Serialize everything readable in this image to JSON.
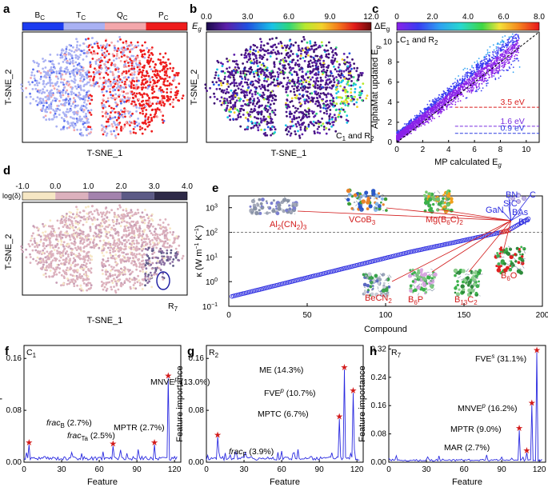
{
  "panels": {
    "a": {
      "label": "a",
      "legend": [
        "B",
        "T",
        "Q",
        "P"
      ],
      "legend_sub": "C",
      "legend_colors": [
        "#1c3cf0",
        "#a9b1f3",
        "#f3a7ab",
        "#ee1c1c"
      ],
      "xlabel": "T-SNE_1",
      "ylabel": "T-SNE_2"
    },
    "b": {
      "label": "b",
      "colorbar_ticks": [
        "0.0",
        "3.0",
        "6.0",
        "9.0",
        "12.0"
      ],
      "colorbar_title": "E",
      "colorbar_title_sub": "g",
      "region_label": "C",
      "region_sub": "1",
      "region_rest": " and R",
      "region_sub2": "2",
      "xlabel": "T-SNE_1",
      "ylabel": "T-SNE_2"
    },
    "c": {
      "label": "c",
      "colorbar_ticks": [
        "0",
        "2.0",
        "4.0",
        "6.0",
        "8.0"
      ],
      "colorbar_title": "ΔE",
      "colorbar_title_sub": "g",
      "region_label": "C",
      "region_sub": "1",
      "region_rest": " and R",
      "region_sub2": "2",
      "xlabel": "MP calculated E",
      "xlabel_sub": "g",
      "ylabel": "AlphaMat updated E",
      "ylabel_sub": "g",
      "x_ticks": [
        "0",
        "2",
        "4",
        "6",
        "8",
        "10"
      ],
      "y_ticks": [
        "0",
        "2",
        "4",
        "6",
        "8",
        "10"
      ],
      "threshold_labels": [
        "3.5 eV",
        "1.6 eV",
        "0.9 eV"
      ],
      "threshold_values": [
        3.5,
        1.6,
        0.9
      ],
      "threshold_colors": [
        "#d91c1c",
        "#7a2ee0",
        "#2b3ce0"
      ]
    },
    "d": {
      "label": "d",
      "colorbar_ticks": [
        "-1.0",
        "0.0",
        "1.0",
        "2.0",
        "3.0",
        "4.0"
      ],
      "colorbar_title": "log(δ)",
      "region_label": "R",
      "region_sub": "7",
      "xlabel": "T-SNE_1",
      "ylabel": "T-SNE_2"
    },
    "e": {
      "label": "e",
      "xlabel": "Compound",
      "ylabel": "κ (W m",
      "ylabel_sup": "−1",
      "ylabel_mid": " K",
      "ylabel_sup2": "−1",
      "ylabel_end": ")",
      "x_ticks": [
        "0",
        "50",
        "100",
        "150",
        "200"
      ],
      "y_ticks": [
        "10",
        "10",
        "10",
        "10",
        "10"
      ],
      "y_exps": [
        "−1",
        "0",
        "1",
        "2",
        "3"
      ],
      "compounds": [
        {
          "text": "Al",
          "sub": "2",
          "rest": "(CN",
          "sub2": "2",
          "rest2": ")",
          "sub3": "3"
        },
        {
          "text": "VCoB",
          "sub": "3"
        },
        {
          "text": "Mg(B",
          "sub": "6",
          "rest": "C)",
          "sub2": "2"
        },
        {
          "text": "BeCN",
          "sub": "2"
        },
        {
          "text": "B",
          "sub": "6",
          "rest": "P"
        },
        {
          "text": "B",
          "sub": "13",
          "rest": "C",
          "sub2": "2"
        },
        {
          "text": "B",
          "sub": "6",
          "rest": "O"
        }
      ],
      "blue_compounds": [
        "BN",
        "C",
        "SiC",
        "GaN",
        "BAs",
        "BP"
      ],
      "dashed_level": 100
    },
    "f": {
      "label": "f",
      "region": "C",
      "region_sub": "1",
      "xlabel": "Feature",
      "ylabel": "Feature importance",
      "y_ticks": [
        "0.00",
        "0.08",
        "0.16"
      ],
      "x_ticks": [
        "0",
        "30",
        "60",
        "90",
        "120"
      ],
      "annotations": [
        {
          "name": "frac",
          "sub": "B",
          "pct": " (2.7%)"
        },
        {
          "name": "frac",
          "sub": "Ta",
          "pct": " (2.5%)"
        },
        {
          "name": "MPTR",
          "sub": "",
          "pct": " (2.7%)"
        },
        {
          "name": "MNVE",
          "sup": "p",
          "pct": " (13.0%)"
        }
      ]
    },
    "g": {
      "label": "g",
      "region": "R",
      "region_sub": "2",
      "xlabel": "Feature",
      "ylabel": "Feature importance",
      "y_ticks": [
        "0.00",
        "0.08",
        "0.16"
      ],
      "x_ticks": [
        "0",
        "30",
        "60",
        "90",
        "120"
      ],
      "annotations": [
        {
          "name": "ME",
          "pct": " (14.3%)"
        },
        {
          "name": "FVE",
          "sup": "p",
          "pct": " (10.7%)"
        },
        {
          "name": "MPTC",
          "pct": " (6.7%)"
        },
        {
          "name": "frac",
          "sub": "F",
          "pct": " (3.9%)"
        }
      ]
    },
    "h": {
      "label": "h",
      "region": "R",
      "region_sub": "7",
      "xlabel": "Feature",
      "ylabel": "Feature importance",
      "y_ticks": [
        "0.00",
        "0.08",
        "0.16",
        "0.24",
        "0.32"
      ],
      "x_ticks": [
        "0",
        "30",
        "60",
        "90",
        "120"
      ],
      "annotations": [
        {
          "name": "FVE",
          "sup": "s",
          "pct": " (31.1%)"
        },
        {
          "name": "MNVE",
          "sup": "p",
          "pct": " (16.2%)"
        },
        {
          "name": "MPTR",
          "pct": " (9.0%)"
        },
        {
          "name": "MAR",
          "pct": " (2.7%)"
        }
      ]
    }
  },
  "chart_data": [
    {
      "type": "scatter",
      "panel": "c",
      "xlabel": "MP calculated Eg",
      "ylabel": "AlphaMat updated Eg",
      "xlim": [
        0,
        11
      ],
      "ylim": [
        0,
        11
      ],
      "diagonal": true,
      "thresholds": [
        3.5,
        1.6,
        0.9
      ]
    },
    {
      "type": "scatter",
      "panel": "e",
      "xlabel": "Compound",
      "ylabel": "κ (W m−1 K−1)",
      "xlim": [
        0,
        200
      ],
      "ylim": [
        0.1,
        3000
      ],
      "yscale": "log",
      "threshold": 100,
      "n_points": 190
    },
    {
      "type": "line",
      "panel": "f",
      "xlim": [
        0,
        125
      ],
      "ylim": [
        0,
        0.18
      ],
      "stars": [
        {
          "x": 4,
          "y": 0.027
        },
        {
          "x": 71,
          "y": 0.025
        },
        {
          "x": 104,
          "y": 0.027
        },
        {
          "x": 115,
          "y": 0.13
        }
      ]
    },
    {
      "type": "line",
      "panel": "g",
      "xlim": [
        0,
        125
      ],
      "ylim": [
        0,
        0.18
      ],
      "stars": [
        {
          "x": 9,
          "y": 0.039
        },
        {
          "x": 106,
          "y": 0.067
        },
        {
          "x": 110,
          "y": 0.143
        },
        {
          "x": 117,
          "y": 0.107
        }
      ]
    },
    {
      "type": "line",
      "panel": "h",
      "xlim": [
        0,
        125
      ],
      "ylim": [
        0,
        0.33
      ],
      "stars": [
        {
          "x": 104,
          "y": 0.09
        },
        {
          "x": 110,
          "y": 0.027
        },
        {
          "x": 114,
          "y": 0.162
        },
        {
          "x": 118,
          "y": 0.311
        }
      ]
    }
  ]
}
